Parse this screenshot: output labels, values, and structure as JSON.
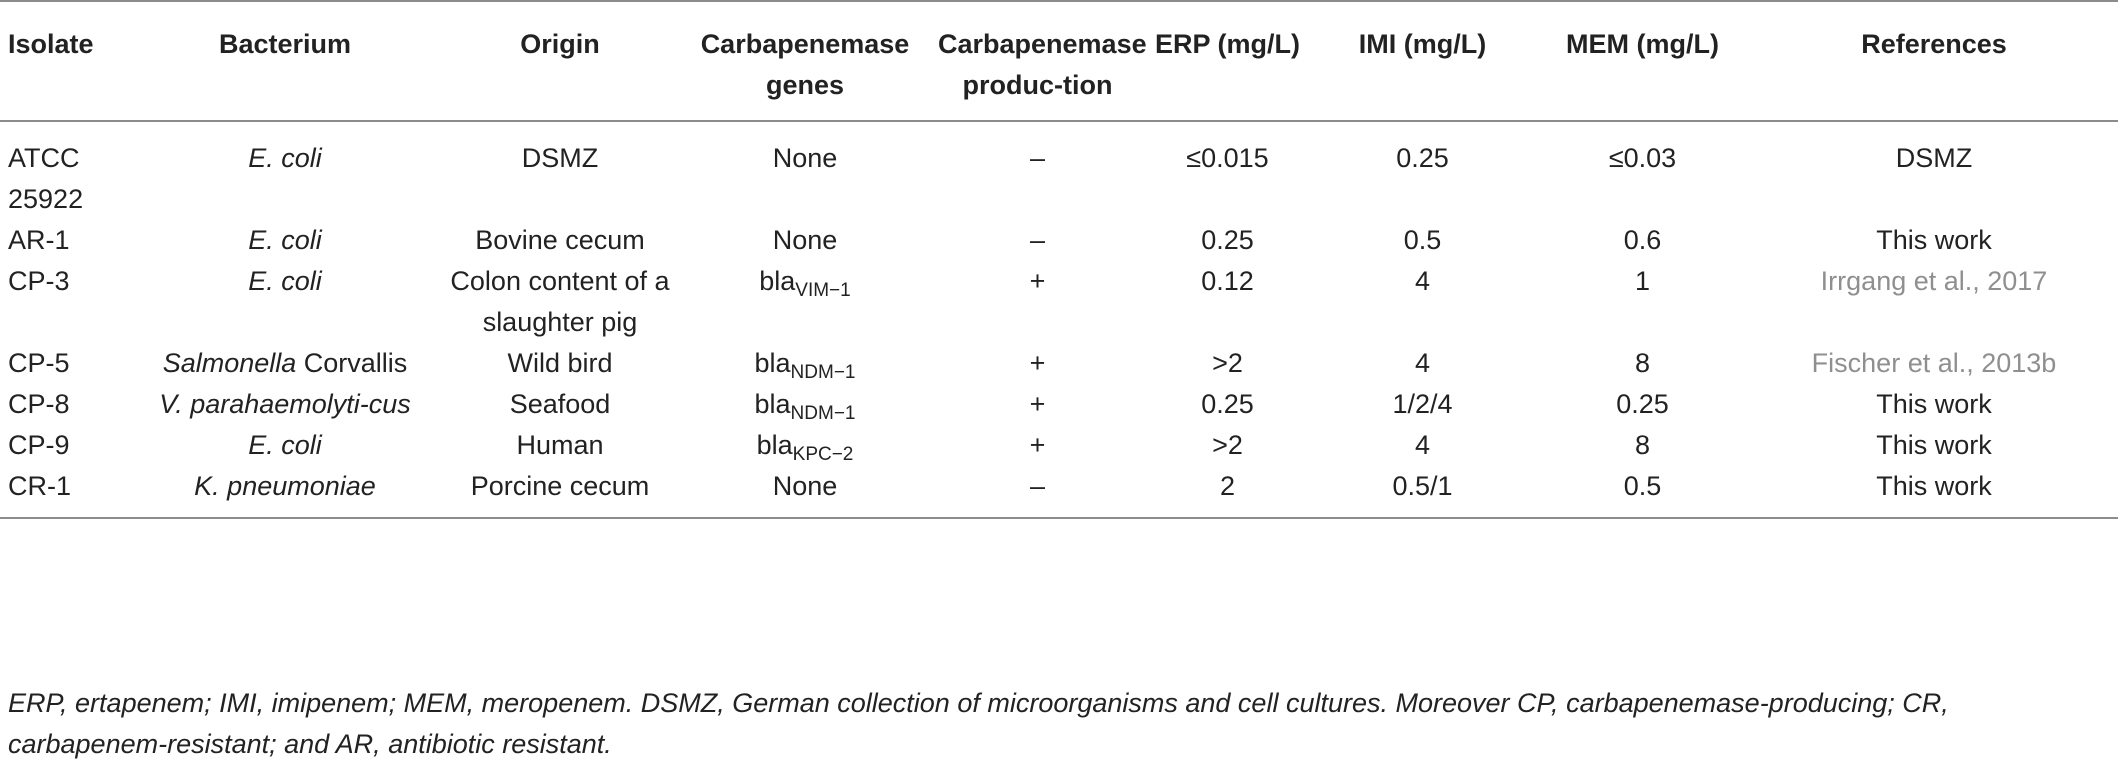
{
  "headers": {
    "isolate": "Isolate",
    "bacterium": "Bacterium",
    "origin": "Origin",
    "genes": "Carbapenemase genes",
    "production": "Carbapenemase produc-tion",
    "erp": "ERP (mg/L)",
    "imi": "IMI (mg/L)",
    "mem": "MEM (mg/L)",
    "refs": "References"
  },
  "rows": [
    {
      "isolate": "ATCC 25922",
      "bacterium_italic": "E. coli",
      "bacterium_plain": "",
      "origin": "DSMZ",
      "genes_base": "None",
      "genes_sub": "",
      "production": "–",
      "erp": "≤0.015",
      "imi": "0.25",
      "mem": "≤0.03",
      "refs": "DSMZ",
      "refs_link": false
    },
    {
      "isolate": "AR-1",
      "bacterium_italic": "E. coli",
      "bacterium_plain": "",
      "origin": "Bovine cecum",
      "genes_base": "None",
      "genes_sub": "",
      "production": "–",
      "erp": "0.25",
      "imi": "0.5",
      "mem": "0.6",
      "refs": "This work",
      "refs_link": false
    },
    {
      "isolate": "CP-3",
      "bacterium_italic": "E. coli",
      "bacterium_plain": "",
      "origin": "Colon content of a slaughter pig",
      "genes_base": "bla",
      "genes_sub": "VIM−1",
      "production": "+",
      "erp": "0.12",
      "imi": "4",
      "mem": "1",
      "refs": "Irrgang et al., 2017",
      "refs_link": true
    },
    {
      "isolate": "CP-5",
      "bacterium_italic": "Salmonella",
      "bacterium_plain": "Corvallis",
      "origin": "Wild bird",
      "genes_base": "bla",
      "genes_sub": "NDM−1",
      "production": "+",
      "erp": ">2",
      "imi": "4",
      "mem": "8",
      "refs": "Fischer et al., 2013b",
      "refs_link": true
    },
    {
      "isolate": "CP-8",
      "bacterium_italic": "V. parahaemolyti-cus",
      "bacterium_plain": "",
      "origin": "Seafood",
      "genes_base": "bla",
      "genes_sub": "NDM−1",
      "production": "+",
      "erp": "0.25",
      "imi": "1/2/4",
      "mem": "0.25",
      "refs": "This work",
      "refs_link": false
    },
    {
      "isolate": "CP-9",
      "bacterium_italic": "E. coli",
      "bacterium_plain": "",
      "origin": "Human",
      "genes_base": "bla",
      "genes_sub": "KPC−2",
      "production": "+",
      "erp": ">2",
      "imi": "4",
      "mem": "8",
      "refs": "This work",
      "refs_link": false
    },
    {
      "isolate": "CR-1",
      "bacterium_italic": "K. pneumoniae",
      "bacterium_plain": "",
      "origin": "Porcine cecum",
      "genes_base": "None",
      "genes_sub": "",
      "production": "–",
      "erp": "2",
      "imi": "0.5/1",
      "mem": "0.5",
      "refs": "This work",
      "refs_link": false
    }
  ],
  "footnote": "ERP, ertapenem; IMI, imipenem; MEM, meropenem. DSMZ, German collection of microorganisms and cell cultures. Moreover CP, carbapenemase-producing; CR, carbapenem-resistant; and AR, antibiotic resistant.",
  "colors": {
    "text": "#222222",
    "rule": "#8c8c8c",
    "reference_link": "#8f8f8f"
  }
}
